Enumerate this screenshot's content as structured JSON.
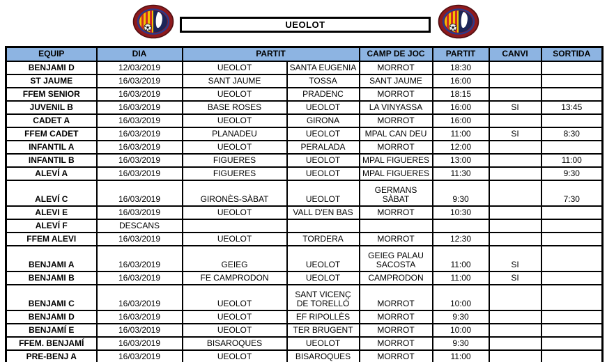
{
  "header": {
    "title": "UEOLOT",
    "logo_label": "club-crest",
    "logo_colors": {
      "ring": "#8e1a1d",
      "ring_dark": "#4f0d10",
      "inner_ring": "#2b3a8c",
      "senyera_yellow": "#f2c300",
      "senyera_red": "#cf2a27",
      "navy": "#1c2558",
      "white_shape": "#ffffff"
    }
  },
  "table": {
    "header_fill": "#8DB4E2",
    "border_color": "#000000",
    "headers": [
      "EQUIP",
      "DIA",
      "PARTIT",
      "CAMP DE JOC",
      "PARTIT",
      "CANVI",
      "SORTIDA"
    ],
    "rows": [
      {
        "equip": "BENJAMI D",
        "dia": "12/03/2019",
        "local": "UEOLOT",
        "visitant": "SANTA EUGENIA",
        "camp": "MORROT",
        "hora": "18:30",
        "canvi": "",
        "sortida": "",
        "tall": false
      },
      {
        "equip": "ST JAUME",
        "dia": "16/03/2019",
        "local": "SANT JAUME",
        "visitant": "TOSSA",
        "camp": "SANT JAUME",
        "hora": "16:00",
        "canvi": "",
        "sortida": "",
        "tall": false
      },
      {
        "equip": "FFEM SENIOR",
        "dia": "16/03/2019",
        "local": "UEOLOT",
        "visitant": "PRADENC",
        "camp": "MORROT",
        "hora": "18:15",
        "canvi": "",
        "sortida": "",
        "tall": false
      },
      {
        "equip": "JUVENIL B",
        "dia": "16/03/2019",
        "local": "BASE ROSES",
        "visitant": "UEOLOT",
        "camp": "LA VINYASSA",
        "hora": "16:00",
        "canvi": "SI",
        "sortida": "13:45",
        "tall": false
      },
      {
        "equip": "CADET A",
        "dia": "16/03/2019",
        "local": "UEOLOT",
        "visitant": "GIRONA",
        "camp": "MORROT",
        "hora": "16:00",
        "canvi": "",
        "sortida": "",
        "tall": false
      },
      {
        "equip": "FFEM CADET",
        "dia": "16/03/2019",
        "local": "PLANADEU",
        "visitant": "UEOLOT",
        "camp": "MPAL CAN DEU",
        "hora": "11:00",
        "canvi": "SI",
        "sortida": "8:30",
        "tall": false
      },
      {
        "equip": "INFANTIL A",
        "dia": "16/03/2019",
        "local": "UEOLOT",
        "visitant": "PERALADA",
        "camp": "MORROT",
        "hora": "12:00",
        "canvi": "",
        "sortida": "",
        "tall": false
      },
      {
        "equip": "INFANTIL B",
        "dia": "16/03/2019",
        "local": "FIGUERES",
        "visitant": "UEOLOT",
        "camp": "MPAL FIGUERES",
        "hora": "13:00",
        "canvi": "",
        "sortida": "11:00",
        "tall": false
      },
      {
        "equip": "ALEVÍ A",
        "dia": "16/03/2019",
        "local": "FIGUERES",
        "visitant": "UEOLOT",
        "camp": "MPAL FIGUERES",
        "hora": "11:30",
        "canvi": "",
        "sortida": "9:30",
        "tall": false
      },
      {
        "equip": "ALEVÍ C",
        "dia": "16/03/2019",
        "local": "GIRONÈS-SÀBAT",
        "visitant": "UEOLOT",
        "camp": "GERMANS SÀBAT",
        "hora": "9:30",
        "canvi": "",
        "sortida": "7:30",
        "tall": true
      },
      {
        "equip": "ALEVI E",
        "dia": "16/03/2019",
        "local": "UEOLOT",
        "visitant": "VALL D'EN BAS",
        "camp": "MORROT",
        "hora": "10:30",
        "canvi": "",
        "sortida": "",
        "tall": false
      },
      {
        "equip": "ALEVÍ F",
        "dia": "DESCANS",
        "local": "",
        "visitant": "",
        "camp": "",
        "hora": "",
        "canvi": "",
        "sortida": "",
        "tall": false
      },
      {
        "equip": "FFEM ALEVI",
        "dia": "16/03/2019",
        "local": "UEOLOT",
        "visitant": "TORDERA",
        "camp": "MORROT",
        "hora": "12:30",
        "canvi": "",
        "sortida": "",
        "tall": false
      },
      {
        "equip": "BENJAMI A",
        "dia": "16/03/2019",
        "local": "GEIEG",
        "visitant": "UEOLOT",
        "camp": "GEIEG PALAU SACOSTA",
        "hora": "11:00",
        "canvi": "SI",
        "sortida": "",
        "tall": true
      },
      {
        "equip": "BENJAMI B",
        "dia": "16/03/2019",
        "local": "FE CAMPRODON",
        "visitant": "UEOLOT",
        "camp": "CAMPRODON",
        "hora": "11:00",
        "canvi": "SI",
        "sortida": "",
        "tall": false
      },
      {
        "equip": "BENJAMI C",
        "dia": "16/03/2019",
        "local": "UEOLOT",
        "visitant": "SANT VICENÇ DE TORELLÓ",
        "camp": "MORROT",
        "hora": "10:00",
        "canvi": "",
        "sortida": "",
        "tall": true
      },
      {
        "equip": "BENJAMI D",
        "dia": "16/03/2019",
        "local": "UEOLOT",
        "visitant": "EF RIPOLLÈS",
        "camp": "MORROT",
        "hora": "9:30",
        "canvi": "",
        "sortida": "",
        "tall": false
      },
      {
        "equip": "BENJAMÍ E",
        "dia": "16/03/2019",
        "local": "UEOLOT",
        "visitant": "TER BRUGENT",
        "camp": "MORROT",
        "hora": "10:00",
        "canvi": "",
        "sortida": "",
        "tall": false
      },
      {
        "equip": "FFEM. BENJAMÍ",
        "dia": "16/03/2019",
        "local": "BISAROQUES",
        "visitant": "UEOLOT",
        "camp": "MORROT",
        "hora": "9:30",
        "canvi": "",
        "sortida": "",
        "tall": false
      },
      {
        "equip": "PRE-BENJ A",
        "dia": "16/03/2019",
        "local": "UEOLOT",
        "visitant": "BISAROQUES",
        "camp": "MORROT",
        "hora": "11:00",
        "canvi": "",
        "sortida": "",
        "tall": false
      }
    ]
  }
}
